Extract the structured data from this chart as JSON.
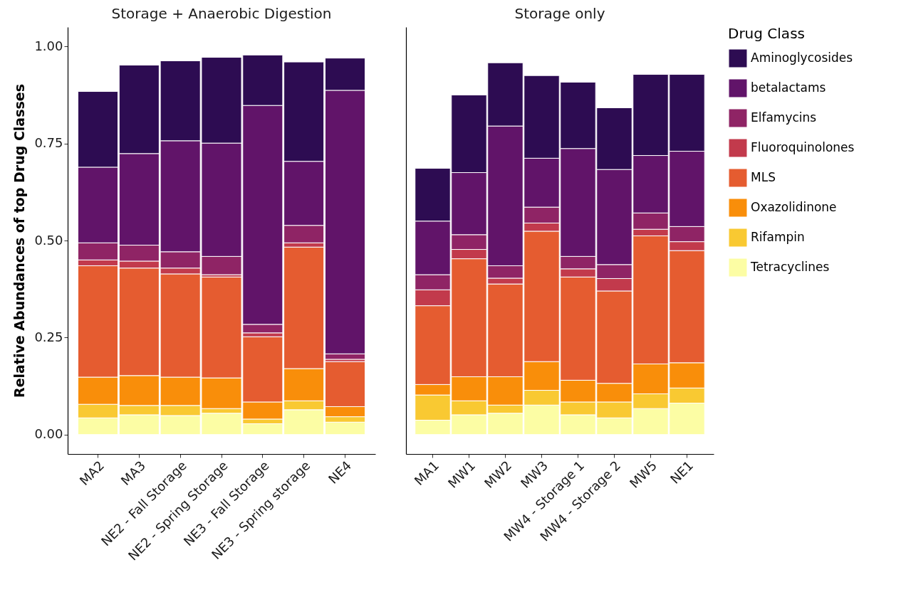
{
  "chart_data": [
    {
      "type": "bar",
      "title": "Storage + Anaerobic Digestion",
      "ylabel": "Relative Abundances of top Drug Classes",
      "stacked": true,
      "categories": [
        "MA2",
        "MA3",
        "NE2 - Fall Storage",
        "NE2 - Spring Storage",
        "NE3 - Fall Storage",
        "NE3 - Spring storage",
        "NE4"
      ],
      "ylim": [
        -0.05,
        1.05
      ],
      "yticks": [
        {
          "value": 0,
          "label": "0.00"
        },
        {
          "value": 0.25,
          "label": "0.25"
        },
        {
          "value": 0.5,
          "label": "0.50"
        },
        {
          "value": 0.75,
          "label": "0.75"
        },
        {
          "value": 1,
          "label": "1.00"
        }
      ],
      "series": [
        {
          "color": "#fcfda4",
          "values": [
            0.043,
            0.051,
            0.049,
            0.055,
            0.028,
            0.064,
            0.032
          ]
        },
        {
          "color": "#f9c932",
          "values": [
            0.035,
            0.024,
            0.026,
            0.012,
            0.012,
            0.023,
            0.014
          ]
        },
        {
          "color": "#f98e0a",
          "values": [
            0.07,
            0.077,
            0.073,
            0.079,
            0.044,
            0.083,
            0.026
          ]
        },
        {
          "color": "#e55c30",
          "values": [
            0.287,
            0.277,
            0.266,
            0.26,
            0.168,
            0.313,
            0.116
          ]
        },
        {
          "color": "#c23a4c",
          "values": [
            0.015,
            0.018,
            0.015,
            0.006,
            0.01,
            0.011,
            0.006
          ]
        },
        {
          "color": "#8f2465",
          "values": [
            0.044,
            0.041,
            0.042,
            0.047,
            0.022,
            0.045,
            0.014
          ]
        },
        {
          "color": "#611469",
          "values": [
            0.195,
            0.236,
            0.286,
            0.292,
            0.564,
            0.165,
            0.679
          ]
        },
        {
          "color": "#2d0c52",
          "values": [
            0.195,
            0.228,
            0.206,
            0.221,
            0.13,
            0.256,
            0.083
          ]
        }
      ]
    },
    {
      "type": "bar",
      "title": "Storage only",
      "stacked": true,
      "tick_labels": "x",
      "legend": "right",
      "legend_title": "Drug Class",
      "categories": [
        "MA1",
        "MW1",
        "MW2",
        "MW3",
        "MW4 - Storage 1",
        "MW4 - Storage 2",
        "MW5",
        "NE1"
      ],
      "ylim": [
        -0.05,
        1.05
      ],
      "series": [
        {
          "name": "Tetracyclines",
          "color": "#fcfda4",
          "values": [
            0.037,
            0.051,
            0.055,
            0.076,
            0.051,
            0.043,
            0.067,
            0.081
          ]
        },
        {
          "name": "Rifampin",
          "color": "#f9c932",
          "values": [
            0.065,
            0.036,
            0.021,
            0.038,
            0.033,
            0.041,
            0.038,
            0.039
          ]
        },
        {
          "name": "Oxazolidinone",
          "color": "#f98e0a",
          "values": [
            0.027,
            0.062,
            0.073,
            0.074,
            0.056,
            0.048,
            0.077,
            0.065
          ]
        },
        {
          "name": "MLS",
          "color": "#e55c30",
          "values": [
            0.203,
            0.304,
            0.239,
            0.336,
            0.266,
            0.238,
            0.33,
            0.289
          ]
        },
        {
          "name": "Fluoroquinolones",
          "color": "#c23a4c",
          "values": [
            0.041,
            0.024,
            0.015,
            0.021,
            0.021,
            0.032,
            0.017,
            0.023
          ]
        },
        {
          "name": "Elfamycins",
          "color": "#8f2465",
          "values": [
            0.039,
            0.038,
            0.032,
            0.041,
            0.032,
            0.036,
            0.042,
            0.039
          ]
        },
        {
          "name": "betalactams",
          "color": "#611469",
          "values": [
            0.138,
            0.16,
            0.36,
            0.126,
            0.278,
            0.245,
            0.148,
            0.194
          ]
        },
        {
          "name": "Aminoglycosides",
          "color": "#2d0c52",
          "values": [
            0.136,
            0.2,
            0.163,
            0.213,
            0.171,
            0.159,
            0.209,
            0.198
          ]
        }
      ]
    }
  ]
}
